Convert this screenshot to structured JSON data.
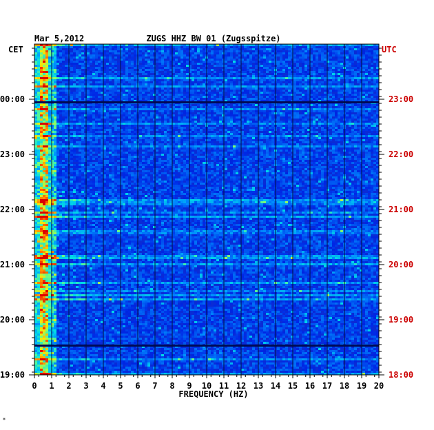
{
  "chart_data": {
    "type": "heatmap",
    "date_label": "Mar 5,2012",
    "title": "ZUGS HHZ BW 01 (Zugsspitze)",
    "xlabel": "FREQUENCY (HZ)",
    "xlim": [
      0,
      20
    ],
    "x_ticks": [
      "0",
      "1",
      "2",
      "3",
      "4",
      "5",
      "6",
      "7",
      "8",
      "9",
      "10",
      "11",
      "12",
      "13",
      "14",
      "15",
      "16",
      "17",
      "18",
      "19",
      "20"
    ],
    "left_axis_title": "CET",
    "right_axis_title": "UTC",
    "left_time_labels": [
      "00:00",
      "23:00",
      "22:00",
      "21:00",
      "20:00",
      "19:00"
    ],
    "right_time_labels": [
      "23:00",
      "22:00",
      "21:00",
      "20:00",
      "19:00",
      "18:00"
    ],
    "colors": {
      "background_low": "#0022cc",
      "accent_right_axis": "#cc0000",
      "text": "#000000"
    },
    "footer_mark": "*"
  }
}
